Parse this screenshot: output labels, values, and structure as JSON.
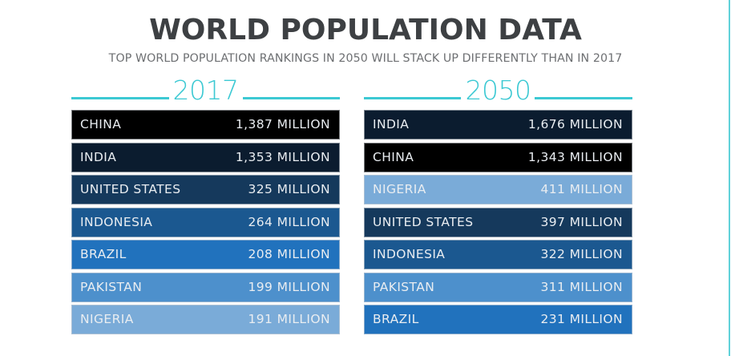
{
  "title": "WORLD POPULATION DATA",
  "subtitle": "TOP WORLD POPULATION RANKINGS IN 2050 WILL STACK UP DIFFERENTLY THAN IN 2017",
  "colors": {
    "accent": "#3cc9d3",
    "title": "#3d4043",
    "subtitle": "#6d6f72",
    "countries": {
      "CHINA": "#000000",
      "INDIA": "#0b1c2f",
      "UNITED STATES": "#15395c",
      "INDONESIA": "#1b5890",
      "BRAZIL": "#2172bd",
      "PAKISTAN": "#4d90cc",
      "NIGERIA": "#7aabd8"
    }
  },
  "chart_data": {
    "type": "table",
    "title": "WORLD POPULATION DATA",
    "subtitle": "TOP WORLD POPULATION RANKINGS IN 2050 WILL STACK UP DIFFERENTLY THAN IN 2017",
    "unit": "MILLION",
    "tables": [
      {
        "year": "2017",
        "rows": [
          {
            "country": "CHINA",
            "value": 1387,
            "label": "1,387 MILLION"
          },
          {
            "country": "INDIA",
            "value": 1353,
            "label": "1,353 MILLION"
          },
          {
            "country": "UNITED STATES",
            "value": 325,
            "label": "325 MILLION"
          },
          {
            "country": "INDONESIA",
            "value": 264,
            "label": "264 MILLION"
          },
          {
            "country": "BRAZIL",
            "value": 208,
            "label": "208 MILLION"
          },
          {
            "country": "PAKISTAN",
            "value": 199,
            "label": "199 MILLION"
          },
          {
            "country": "NIGERIA",
            "value": 191,
            "label": "191 MILLION"
          }
        ]
      },
      {
        "year": "2050",
        "rows": [
          {
            "country": "INDIA",
            "value": 1676,
            "label": "1,676 MILLION"
          },
          {
            "country": "CHINA",
            "value": 1343,
            "label": "1,343 MILLION"
          },
          {
            "country": "NIGERIA",
            "value": 411,
            "label": "411 MILLION"
          },
          {
            "country": "UNITED STATES",
            "value": 397,
            "label": "397 MILLION"
          },
          {
            "country": "INDONESIA",
            "value": 322,
            "label": "322 MILLION"
          },
          {
            "country": "PAKISTAN",
            "value": 311,
            "label": "311 MILLION"
          },
          {
            "country": "BRAZIL",
            "value": 231,
            "label": "231 MILLION"
          }
        ]
      }
    ]
  }
}
